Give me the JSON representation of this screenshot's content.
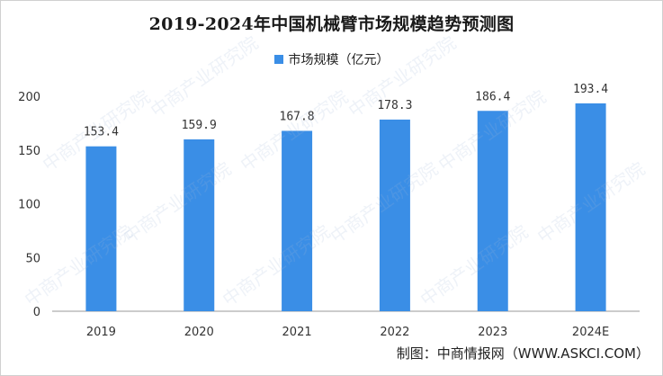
{
  "chart_data": {
    "type": "bar",
    "title": "2019-2024年中国机械臂市场规模趋势预测图",
    "categories": [
      "2019",
      "2020",
      "2021",
      "2022",
      "2023",
      "2024E"
    ],
    "series": [
      {
        "name": "市场规模（亿元）",
        "values": [
          153.4,
          159.9,
          167.8,
          178.3,
          186.4,
          193.4
        ]
      }
    ],
    "ylim": [
      0,
      200
    ],
    "yticks": [
      0,
      50,
      100,
      150,
      200
    ],
    "grid": false,
    "legend_position": "top-center",
    "bar_color": "#3a8ee6"
  },
  "source": "制图：中商情报网（WWW.ASKCI.COM）",
  "watermark_text": "中商产业研究院"
}
